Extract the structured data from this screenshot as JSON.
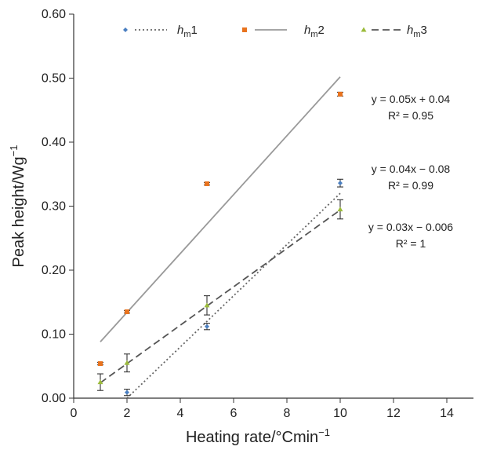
{
  "chart_data": {
    "type": "scatter",
    "xlabel": "Heating rate/°Cmin",
    "xlabel_sup": "−1",
    "ylabel": "Peak height/Wg",
    "ylabel_sup": "−1",
    "xlim": [
      0,
      15
    ],
    "ylim": [
      0,
      0.6
    ],
    "x_ticks": [
      0,
      2,
      4,
      6,
      8,
      10,
      12,
      14
    ],
    "x_tick_labels": [
      "0",
      "2",
      "4",
      "6",
      "8",
      "10",
      "12",
      "14"
    ],
    "y_ticks": [
      0,
      0.1,
      0.2,
      0.3,
      0.4,
      0.5,
      0.6
    ],
    "y_tick_labels": [
      "0.00",
      "0.10",
      "0.20",
      "0.30",
      "0.40",
      "0.50",
      "0.60"
    ],
    "grid": false,
    "legend_position": "top",
    "series": [
      {
        "name": "h",
        "name_sub": "m",
        "name_suffix": "1",
        "marker": "diamond",
        "color": "#4a7fc1",
        "line_style": "dotted",
        "line_color": "#666666",
        "x": [
          1,
          2,
          5,
          10
        ],
        "y": [
          null,
          0.009,
          0.112,
          0.336
        ],
        "err": [
          null,
          0.005,
          0.005,
          0.006
        ],
        "fit": {
          "slope": 0.04,
          "intercept": -0.08,
          "x_range": [
            2,
            10
          ]
        },
        "equation": [
          "y = 0.04x − 0.08",
          "R² = 0.99"
        ]
      },
      {
        "name": "h",
        "name_sub": "m",
        "name_suffix": "2",
        "marker": "square",
        "color": "#e8731f",
        "line_style": "solid",
        "line_color": "#999999",
        "x": [
          1,
          2,
          5,
          10
        ],
        "y": [
          0.054,
          0.135,
          0.335,
          0.475
        ],
        "err": [
          0.002,
          0.002,
          0.002,
          0.003
        ],
        "fit": {
          "slope": 0.046,
          "intercept": 0.042,
          "x_range": [
            1,
            10
          ]
        },
        "equation": [
          "y = 0.05x + 0.04",
          "R² = 0.95"
        ]
      },
      {
        "name": "h",
        "name_sub": "m",
        "name_suffix": "3",
        "marker": "triangle",
        "color": "#9bbb3a",
        "line_style": "dashed",
        "line_color": "#555555",
        "x": [
          1,
          2,
          5,
          10
        ],
        "y": [
          0.025,
          0.055,
          0.145,
          0.295
        ],
        "err": [
          0.013,
          0.014,
          0.015,
          0.015
        ],
        "fit": {
          "slope": 0.03,
          "intercept": -0.006,
          "x_range": [
            1,
            10
          ]
        },
        "equation": [
          "y = 0.03x − 0.006",
          "R² = 1"
        ]
      }
    ]
  }
}
